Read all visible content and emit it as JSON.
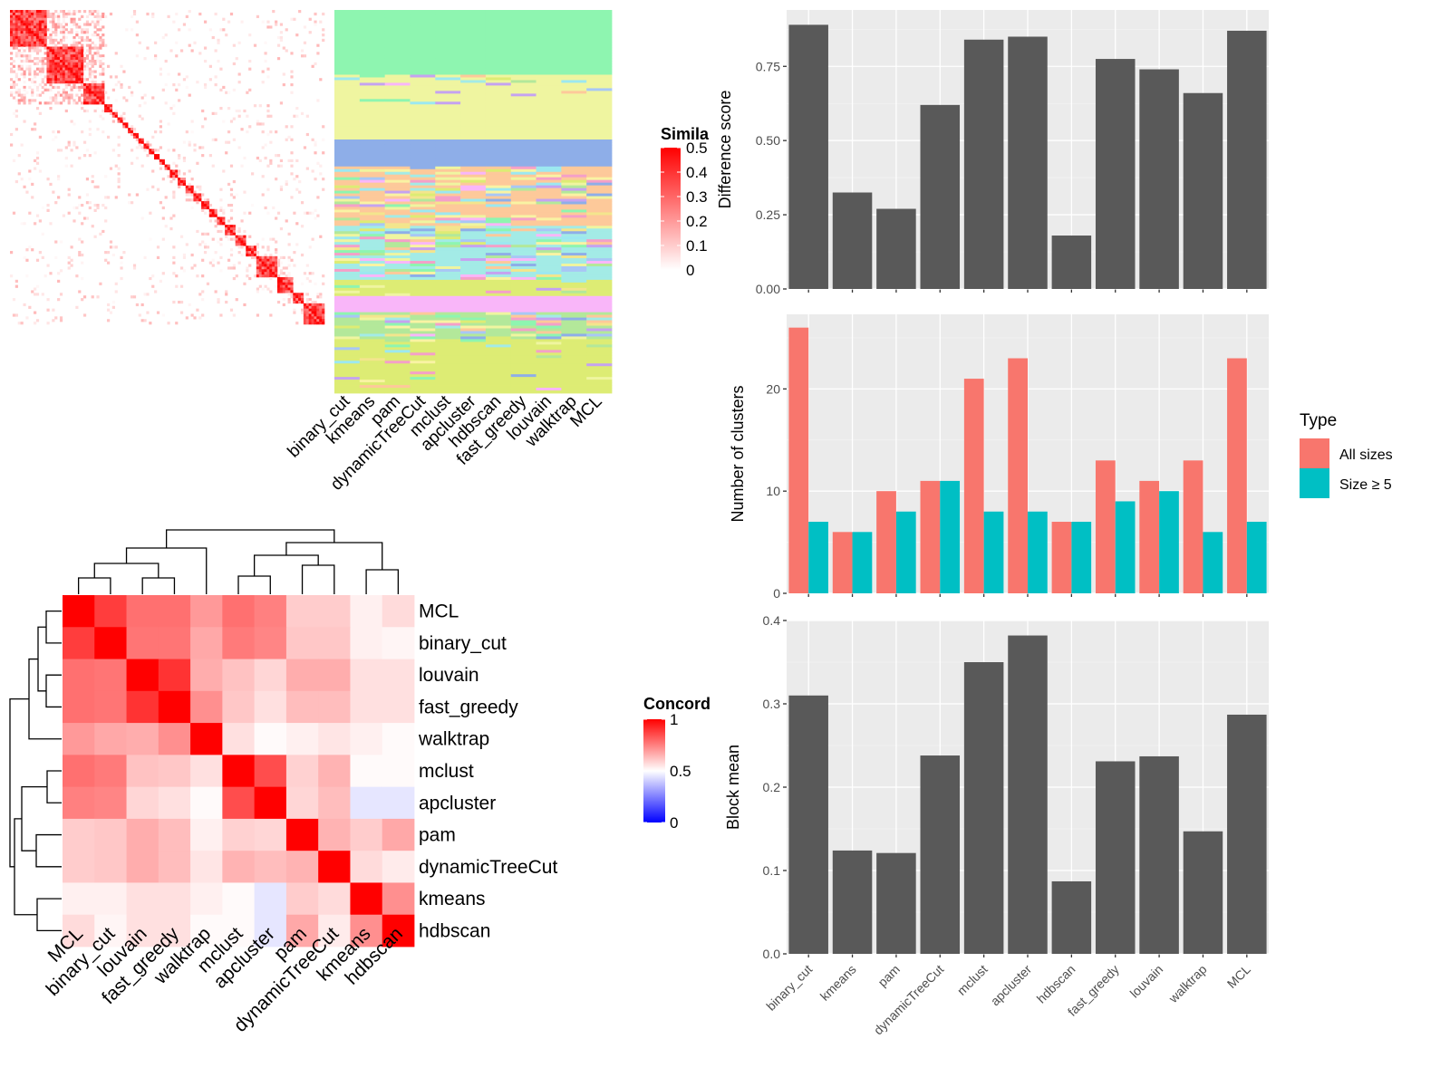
{
  "chart_data": [
    {
      "type": "heatmap",
      "name": "similarity-matrix",
      "legend_title": "Similarity",
      "legend_title_visible": "Simila",
      "legend_ticks": [
        "0",
        "0.1",
        "0.2",
        "0.3",
        "0.4",
        "0.5"
      ],
      "legend_values": [
        0,
        0.1,
        0.2,
        0.3,
        0.4,
        0.5
      ],
      "n_terms": 120,
      "diagonal_blocks": [
        [
          0,
          14
        ],
        [
          14,
          28
        ],
        [
          28,
          36
        ],
        [
          36,
          39
        ],
        [
          39,
          41
        ],
        [
          41,
          43
        ],
        [
          43,
          45
        ],
        [
          45,
          47
        ],
        [
          47,
          49
        ],
        [
          49,
          51
        ],
        [
          51,
          53
        ],
        [
          53,
          55
        ],
        [
          55,
          57
        ],
        [
          57,
          59
        ],
        [
          59,
          61
        ],
        [
          61,
          64
        ],
        [
          64,
          67
        ],
        [
          67,
          70
        ],
        [
          70,
          73
        ],
        [
          73,
          76
        ],
        [
          76,
          79
        ],
        [
          79,
          82
        ],
        [
          82,
          86
        ],
        [
          86,
          90
        ],
        [
          90,
          94
        ],
        [
          94,
          102
        ],
        [
          102,
          108
        ],
        [
          108,
          112
        ],
        [
          112,
          120
        ]
      ]
    },
    {
      "type": "heatmap",
      "name": "cluster-membership",
      "methods": [
        "binary_cut",
        "kmeans",
        "pam",
        "dynamicTreeCut",
        "mclust",
        "apcluster",
        "hdbscan",
        "fast_greedy",
        "louvain",
        "walktrap",
        "MCL"
      ],
      "palette": [
        "#8ef5b0",
        "#eff5a0",
        "#8eaee8",
        "#fdc99a",
        "#a3ebe6",
        "#f9b6f9",
        "#ddec74",
        "#f4a0c8",
        "#a8c7f5",
        "#b3e89a",
        "#f3e58d",
        "#c5a3f0",
        "#f9f3a3",
        "#9ce8f0"
      ]
    },
    {
      "type": "heatmap",
      "name": "concordance",
      "legend_title": "Concordance",
      "legend_title_visible": "Concord",
      "legend_ticks": [
        "0",
        "0.5",
        "1"
      ],
      "legend_values": [
        0,
        0.5,
        1
      ],
      "methods": [
        "MCL",
        "binary_cut",
        "louvain",
        "fast_greedy",
        "walktrap",
        "mclust",
        "apcluster",
        "pam",
        "dynamicTreeCut",
        "kmeans",
        "hdbscan"
      ],
      "matrix": [
        [
          1.0,
          0.88,
          0.78,
          0.78,
          0.7,
          0.78,
          0.75,
          0.6,
          0.6,
          0.53,
          0.57
        ],
        [
          0.88,
          1.0,
          0.77,
          0.77,
          0.67,
          0.76,
          0.74,
          0.61,
          0.61,
          0.53,
          0.52
        ],
        [
          0.78,
          0.77,
          1.0,
          0.9,
          0.66,
          0.62,
          0.58,
          0.66,
          0.66,
          0.56,
          0.56
        ],
        [
          0.78,
          0.77,
          0.9,
          1.0,
          0.72,
          0.61,
          0.56,
          0.63,
          0.63,
          0.56,
          0.56
        ],
        [
          0.7,
          0.67,
          0.66,
          0.72,
          1.0,
          0.56,
          0.51,
          0.53,
          0.55,
          0.53,
          0.51
        ],
        [
          0.78,
          0.76,
          0.62,
          0.61,
          0.56,
          1.0,
          0.85,
          0.59,
          0.65,
          0.51,
          0.51
        ],
        [
          0.75,
          0.74,
          0.58,
          0.56,
          0.51,
          0.85,
          1.0,
          0.58,
          0.63,
          0.45,
          0.45
        ],
        [
          0.6,
          0.61,
          0.66,
          0.63,
          0.53,
          0.59,
          0.58,
          1.0,
          0.65,
          0.6,
          0.67
        ],
        [
          0.6,
          0.61,
          0.66,
          0.63,
          0.55,
          0.65,
          0.63,
          0.65,
          1.0,
          0.57,
          0.54
        ],
        [
          0.53,
          0.53,
          0.56,
          0.56,
          0.53,
          0.51,
          0.45,
          0.6,
          0.57,
          1.0,
          0.72
        ],
        [
          0.57,
          0.52,
          0.56,
          0.56,
          0.51,
          0.51,
          0.45,
          0.67,
          0.54,
          0.72,
          1.0
        ]
      ]
    },
    {
      "type": "bar",
      "name": "difference-score",
      "ylabel": "Difference score",
      "categories": [
        "binary_cut",
        "kmeans",
        "pam",
        "dynamicTreeCut",
        "mclust",
        "apcluster",
        "hdbscan",
        "fast_greedy",
        "louvain",
        "walktrap",
        "MCL"
      ],
      "values": [
        0.89,
        0.325,
        0.27,
        0.62,
        0.84,
        0.85,
        0.18,
        0.775,
        0.74,
        0.66,
        0.87
      ],
      "ylim": [
        0,
        0.94
      ],
      "yticks": [
        "0.00",
        "0.25",
        "0.50",
        "0.75"
      ],
      "ytick_values": [
        0,
        0.25,
        0.5,
        0.75
      ],
      "bar_color": "#595959",
      "panel_bg": "#ebebeb",
      "grid": true
    },
    {
      "type": "bar",
      "name": "number-of-clusters",
      "ylabel": "Number of clusters",
      "categories": [
        "binary_cut",
        "kmeans",
        "pam",
        "dynamicTreeCut",
        "mclust",
        "apcluster",
        "hdbscan",
        "fast_greedy",
        "louvain",
        "walktrap",
        "MCL"
      ],
      "series": [
        {
          "name": "All sizes",
          "color": "#f8766d",
          "values": [
            26,
            6,
            10,
            11,
            21,
            23,
            7,
            13,
            11,
            13,
            23
          ]
        },
        {
          "name": "Size ≥ 5",
          "color": "#00bfc4",
          "values": [
            7,
            6,
            8,
            11,
            8,
            8,
            7,
            9,
            10,
            6,
            7
          ]
        }
      ],
      "legend_title": "Type",
      "ylim": [
        0,
        27.3
      ],
      "yticks": [
        "0",
        "10",
        "20"
      ],
      "ytick_values": [
        0,
        10,
        20
      ],
      "panel_bg": "#ebebeb",
      "grid": true
    },
    {
      "type": "bar",
      "name": "block-mean",
      "ylabel": "Block mean",
      "categories": [
        "binary_cut",
        "kmeans",
        "pam",
        "dynamicTreeCut",
        "mclust",
        "apcluster",
        "hdbscan",
        "fast_greedy",
        "louvain",
        "walktrap",
        "MCL"
      ],
      "values": [
        0.31,
        0.124,
        0.121,
        0.238,
        0.35,
        0.382,
        0.087,
        0.231,
        0.237,
        0.147,
        0.287
      ],
      "ylim": [
        0,
        0.4
      ],
      "yticks": [
        "0.0",
        "0.1",
        "0.2",
        "0.3",
        "0.4"
      ],
      "ytick_values": [
        0,
        0.1,
        0.2,
        0.3,
        0.4
      ],
      "bar_color": "#595959",
      "panel_bg": "#ebebeb",
      "grid": true
    }
  ]
}
